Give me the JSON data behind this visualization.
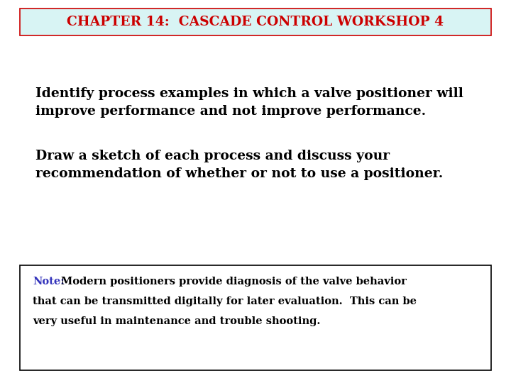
{
  "title": "CHAPTER 14:  CASCADE CONTROL WORKSHOP 4",
  "title_color": "#cc0000",
  "title_bg_color": "#d8f4f4",
  "title_border_color": "#cc0000",
  "body_text1_line1": "Identify process examples in which a valve positioner will",
  "body_text1_line2": "improve performance and not improve performance.",
  "body_text2_line1": "Draw a sketch of each process and discuss your",
  "body_text2_line2": "recommendation of whether or not to use a positioner.",
  "note_label": "Note:",
  "note_label_color": "#3333bb",
  "note_line1_rest": "Modern positioners provide diagnosis of the valve behavior",
  "note_line2": "that can be transmitted digitally for later evaluation.  This can be",
  "note_line3": "very useful in maintenance and trouble shooting.",
  "note_text_color": "#000000",
  "note_border_color": "#000000",
  "body_text_color": "#000000",
  "bg_color": "#ffffff",
  "body_fontsize": 13.5,
  "title_fontsize": 13.5,
  "note_fontsize": 10.5
}
